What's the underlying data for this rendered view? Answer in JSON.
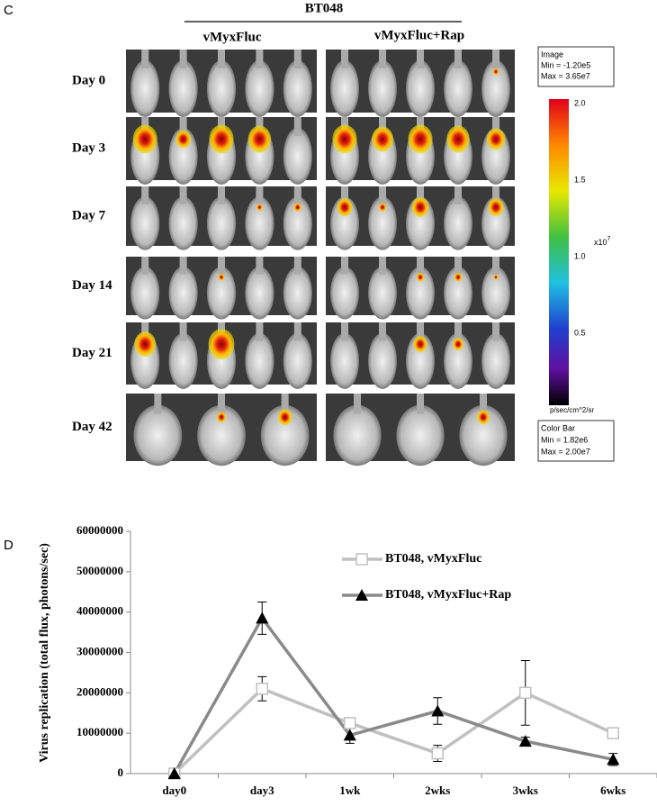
{
  "panel_c": {
    "label": "C",
    "group": "BT048",
    "columns": [
      "vMyxFluc",
      "vMyxFluc+Rap"
    ],
    "rows": [
      "Day 0",
      "Day 3",
      "Day 7",
      "Day 14",
      "Day 21",
      "Day 42"
    ],
    "image_box": [
      "Image",
      "Min = -1.20e5",
      "Max = 3.65e7"
    ],
    "colorbar_ticks": [
      "2.0",
      "1.5",
      "1.0",
      "0.5"
    ],
    "colorbar_scale": "x10",
    "colorbar_exponent": "7",
    "colorbar_unit": "p/sec/cm^2/sr",
    "colorbar_box": [
      "Color Bar",
      "Min = 1.82e6",
      "Max = 2.00e7"
    ]
  },
  "chart_data": {
    "type": "line",
    "panel_label": "D",
    "y_label": "Virus replication (total flux, photons/sec)",
    "categories": [
      "day0",
      "day3",
      "1wk",
      "2wks",
      "3wks",
      "6wks"
    ],
    "ylim": [
      0,
      60000000
    ],
    "yticks": [
      0,
      10000000,
      20000000,
      30000000,
      40000000,
      50000000,
      60000000
    ],
    "series": [
      {
        "name": "BT048, vMyxFluc",
        "color": "#c0c0c0",
        "marker": "square",
        "values": [
          0,
          21000000,
          12500000,
          5000000,
          20000000,
          10000000
        ],
        "errors": [
          0,
          3000000,
          0,
          2000000,
          8000000,
          0
        ]
      },
      {
        "name": "BT048, vMyxFluc+Rap",
        "color": "#8a8a8a",
        "marker": "triangle",
        "values": [
          0,
          38500000,
          9500000,
          15500000,
          8000000,
          3500000
        ],
        "errors": [
          0,
          4000000,
          2000000,
          3300000,
          1000000,
          1500000
        ]
      }
    ]
  }
}
